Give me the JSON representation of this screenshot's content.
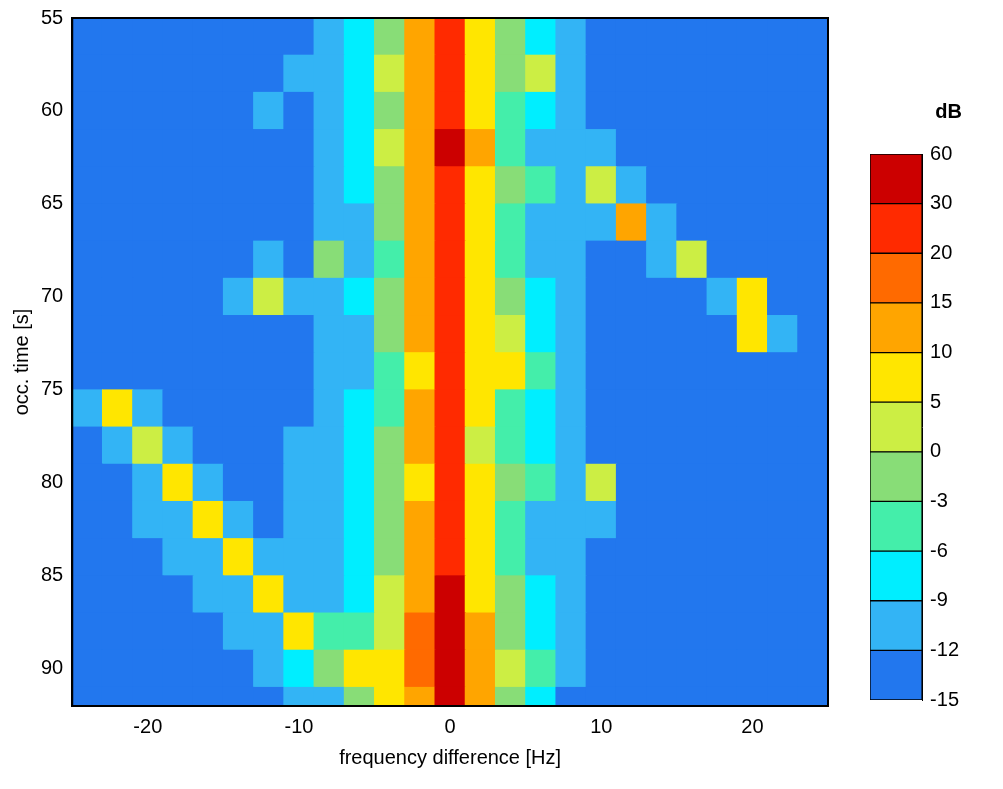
{
  "chart_data": {
    "type": "heatmap",
    "x_label": "frequency difference [Hz]",
    "y_label": "occ. time [s]",
    "xlim": [
      -25,
      25
    ],
    "xticks": [
      -20,
      -10,
      0,
      10,
      20
    ],
    "ylim": [
      92,
      55
    ],
    "yticks": [
      55,
      60,
      65,
      70,
      75,
      80,
      85,
      90
    ],
    "grid": false,
    "x": [
      -24,
      -22,
      -20,
      -18,
      -16,
      -14,
      -12,
      -10,
      -8,
      -6,
      -4,
      -2,
      0,
      2,
      4,
      6,
      8,
      10,
      12,
      14,
      16,
      18,
      20,
      22,
      24
    ],
    "y": [
      56,
      58,
      60,
      62,
      64,
      66,
      68,
      70,
      72,
      74,
      76,
      78,
      80,
      82,
      84,
      86,
      88,
      90,
      92
    ],
    "values": [
      [
        -14,
        -14,
        -14,
        -14,
        -14,
        -14,
        -14,
        -14,
        -11,
        -9,
        -3,
        10,
        25,
        8,
        -2,
        -9,
        -11,
        -14,
        -14,
        -14,
        -14,
        -14,
        -14,
        -14,
        -14
      ],
      [
        -14,
        -14,
        -14,
        -14,
        -14,
        -14,
        -14,
        -11,
        -10,
        -8,
        0,
        12,
        25,
        6,
        -3,
        2,
        -10,
        -14,
        -14,
        -14,
        -14,
        -14,
        -14,
        -14,
        -14
      ],
      [
        -14,
        -14,
        -14,
        -14,
        -14,
        -14,
        -11,
        -14,
        -11,
        -9,
        -2,
        10,
        28,
        8,
        -5,
        -9,
        -11,
        -14,
        -14,
        -14,
        -14,
        -14,
        -14,
        -14,
        -14
      ],
      [
        -14,
        -14,
        -14,
        -14,
        -14,
        -14,
        -14,
        -14,
        -11,
        -8,
        0,
        12,
        30,
        10,
        -4,
        -10,
        -11,
        -11,
        -14,
        -14,
        -14,
        -14,
        -14,
        -14,
        -14
      ],
      [
        -14,
        -14,
        -14,
        -14,
        -14,
        -14,
        -14,
        -14,
        -11,
        -9,
        -3,
        10,
        25,
        6,
        -3,
        -6,
        -10,
        3,
        -11,
        -14,
        -14,
        -14,
        -14,
        -14,
        -14
      ],
      [
        -14,
        -14,
        -14,
        -14,
        -14,
        -14,
        -14,
        -14,
        -11,
        -10,
        -3,
        12,
        25,
        5,
        -5,
        -10,
        -11,
        -11,
        10,
        -11,
        -14,
        -14,
        -14,
        -14,
        -14
      ],
      [
        -14,
        -14,
        -14,
        -14,
        -14,
        -14,
        -11,
        -14,
        -3,
        -10,
        -4,
        10,
        25,
        8,
        -4,
        -10,
        -11,
        -14,
        -14,
        -11,
        2,
        -14,
        -14,
        -14,
        -14
      ],
      [
        -14,
        -14,
        -14,
        -14,
        -14,
        -11,
        3,
        -11,
        -11,
        -9,
        -1,
        12,
        22,
        6,
        -2,
        -9,
        -11,
        -14,
        -14,
        -14,
        -14,
        -11,
        8,
        -14,
        -14
      ],
      [
        -14,
        -14,
        -14,
        -14,
        -14,
        -14,
        -14,
        -14,
        -11,
        -10,
        -3,
        10,
        22,
        8,
        3,
        -8,
        -11,
        -14,
        -14,
        -14,
        -14,
        -14,
        6,
        -11,
        -14
      ],
      [
        -14,
        -14,
        -14,
        -14,
        -14,
        -14,
        -14,
        -14,
        -11,
        -10,
        -4,
        8,
        22,
        5,
        5,
        -6,
        -11,
        -14,
        -14,
        -14,
        -14,
        -14,
        -14,
        -14,
        -14
      ],
      [
        -11,
        6,
        -11,
        -14,
        -14,
        -14,
        -14,
        -14,
        -11,
        -9,
        -4,
        10,
        25,
        6,
        -4,
        -8,
        -11,
        -14,
        -14,
        -14,
        -14,
        -14,
        -14,
        -14,
        -14
      ],
      [
        -14,
        -11,
        3,
        -11,
        -14,
        -14,
        -14,
        -11,
        -11,
        -9,
        -3,
        10,
        25,
        4,
        -4,
        -8,
        -11,
        -14,
        -14,
        -14,
        -14,
        -14,
        -14,
        -14,
        -14
      ],
      [
        -14,
        -14,
        -11,
        5,
        -11,
        -14,
        -14,
        -11,
        -11,
        -9,
        -2,
        8,
        28,
        5,
        -3,
        -5,
        -11,
        0,
        -14,
        -14,
        -14,
        -14,
        -14,
        -14,
        -14
      ],
      [
        -14,
        -14,
        -11,
        -11,
        6,
        -11,
        -14,
        -11,
        -11,
        -9,
        -3,
        10,
        28,
        6,
        -5,
        -10,
        -11,
        -11,
        -14,
        -14,
        -14,
        -14,
        -14,
        -14,
        -14
      ],
      [
        -14,
        -14,
        -14,
        -11,
        -11,
        6,
        -11,
        -11,
        -11,
        -8,
        -2,
        10,
        28,
        6,
        -4,
        -10,
        -11,
        -14,
        -14,
        -14,
        -14,
        -14,
        -14,
        -14,
        -14
      ],
      [
        -14,
        -14,
        -14,
        -14,
        -11,
        -11,
        5,
        -11,
        -10,
        -8,
        0,
        12,
        30,
        8,
        -3,
        -9,
        -11,
        -14,
        -14,
        -14,
        -14,
        -14,
        -14,
        -14,
        -14
      ],
      [
        -14,
        -14,
        -14,
        -14,
        -14,
        -11,
        -11,
        5,
        -6,
        -6,
        3,
        15,
        30,
        10,
        -3,
        -9,
        -11,
        -14,
        -14,
        -14,
        -14,
        -14,
        -14,
        -14,
        -14
      ],
      [
        -14,
        -14,
        -14,
        -14,
        -14,
        -14,
        -11,
        -9,
        -3,
        5,
        8,
        15,
        30,
        12,
        0,
        -6,
        -11,
        -14,
        -14,
        -14,
        -14,
        -14,
        -14,
        -14,
        -14
      ],
      [
        -14,
        -14,
        -14,
        -14,
        -14,
        -14,
        -14,
        -11,
        -10,
        -1,
        8,
        12,
        30,
        10,
        -3,
        -9,
        -14,
        -14,
        -14,
        -14,
        -14,
        -14,
        -14,
        -14,
        -14
      ]
    ],
    "colorbar": {
      "title": "dB",
      "levels": [
        -15,
        -12,
        -9,
        -6,
        -3,
        0,
        5,
        10,
        15,
        20,
        30,
        60
      ],
      "colors": [
        "#2277ee",
        "#33b4f5",
        "#00eeff",
        "#44eeaa",
        "#88dd77",
        "#ccee44",
        "#ffe600",
        "#ffa500",
        "#ff6a00",
        "#ff2a00",
        "#cc0000"
      ]
    }
  }
}
